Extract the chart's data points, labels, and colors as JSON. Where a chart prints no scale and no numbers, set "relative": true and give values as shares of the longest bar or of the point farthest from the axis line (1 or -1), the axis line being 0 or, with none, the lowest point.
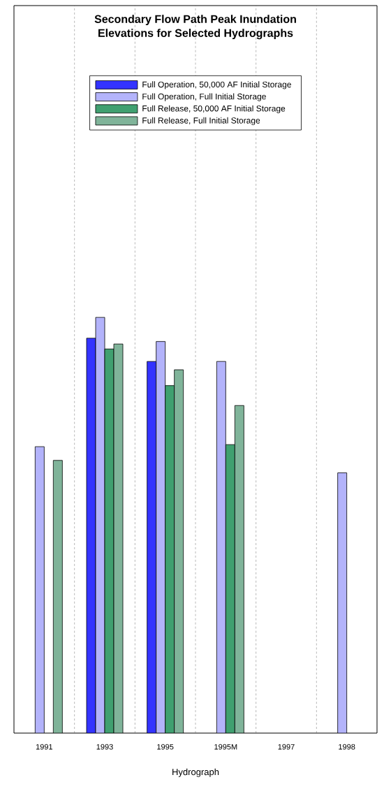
{
  "chart_data": {
    "type": "bar",
    "title": "Secondary Flow Path Peak Inundation Elevations for Selected Hydrographs",
    "xlabel": "Hydrograph",
    "relative": true,
    "grid": "x",
    "legend": "top",
    "categories": [
      "1991",
      "1993",
      "1995",
      "1995M",
      "1997",
      "1998"
    ],
    "series": [
      {
        "name": "Full Operation, 50,000 AF Initial Storage",
        "color": "#3333ff",
        "values": [
          null,
          0.95,
          0.894,
          null,
          null,
          null
        ]
      },
      {
        "name": "Full Operation, Full Initial Storage",
        "color": "#b3b3fb",
        "values": [
          0.689,
          1,
          0.942,
          0.894,
          null,
          0.626
        ]
      },
      {
        "name": "Full Release, 50,000 AF Initial Storage",
        "color": "#40a070",
        "values": [
          null,
          0.924,
          0.836,
          0.694,
          null,
          null
        ]
      },
      {
        "name": "Full Release, Full Initial Storage",
        "color": "#80b49a",
        "values": [
          0.656,
          0.936,
          0.874,
          0.788,
          null,
          null
        ]
      }
    ]
  }
}
